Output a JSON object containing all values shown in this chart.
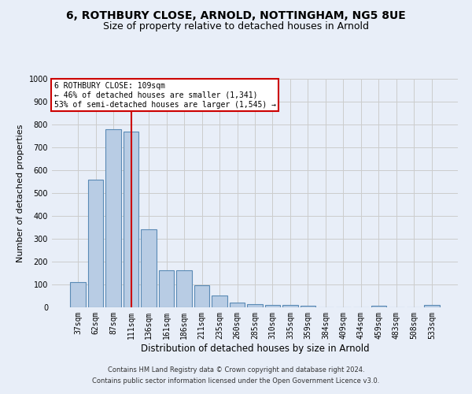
{
  "title": "6, ROTHBURY CLOSE, ARNOLD, NOTTINGHAM, NG5 8UE",
  "subtitle": "Size of property relative to detached houses in Arnold",
  "xlabel": "Distribution of detached houses by size in Arnold",
  "ylabel": "Number of detached properties",
  "footer_line1": "Contains HM Land Registry data © Crown copyright and database right 2024.",
  "footer_line2": "Contains public sector information licensed under the Open Government Licence v3.0.",
  "categories": [
    "37sqm",
    "62sqm",
    "87sqm",
    "111sqm",
    "136sqm",
    "161sqm",
    "186sqm",
    "211sqm",
    "235sqm",
    "260sqm",
    "285sqm",
    "310sqm",
    "335sqm",
    "359sqm",
    "384sqm",
    "409sqm",
    "434sqm",
    "459sqm",
    "483sqm",
    "508sqm",
    "533sqm"
  ],
  "values": [
    112,
    558,
    778,
    768,
    343,
    163,
    162,
    97,
    52,
    20,
    15,
    12,
    10,
    8,
    0,
    0,
    0,
    8,
    0,
    0,
    10
  ],
  "bar_color": "#b8cce4",
  "bar_edge_color": "#5a8ab5",
  "bar_edge_width": 0.8,
  "highlight_bar_index": 3,
  "highlight_line_color": "#cc0000",
  "annotation_text": "6 ROTHBURY CLOSE: 109sqm\n← 46% of detached houses are smaller (1,341)\n53% of semi-detached houses are larger (1,545) →",
  "annotation_box_color": "#ffffff",
  "annotation_box_edge_color": "#cc0000",
  "ylim": [
    0,
    1000
  ],
  "yticks": [
    0,
    100,
    200,
    300,
    400,
    500,
    600,
    700,
    800,
    900,
    1000
  ],
  "grid_color": "#cccccc",
  "bg_color": "#e8eef8",
  "title_fontsize": 10,
  "subtitle_fontsize": 9,
  "tick_fontsize": 7,
  "ylabel_fontsize": 8,
  "xlabel_fontsize": 8.5,
  "footer_fontsize": 6
}
